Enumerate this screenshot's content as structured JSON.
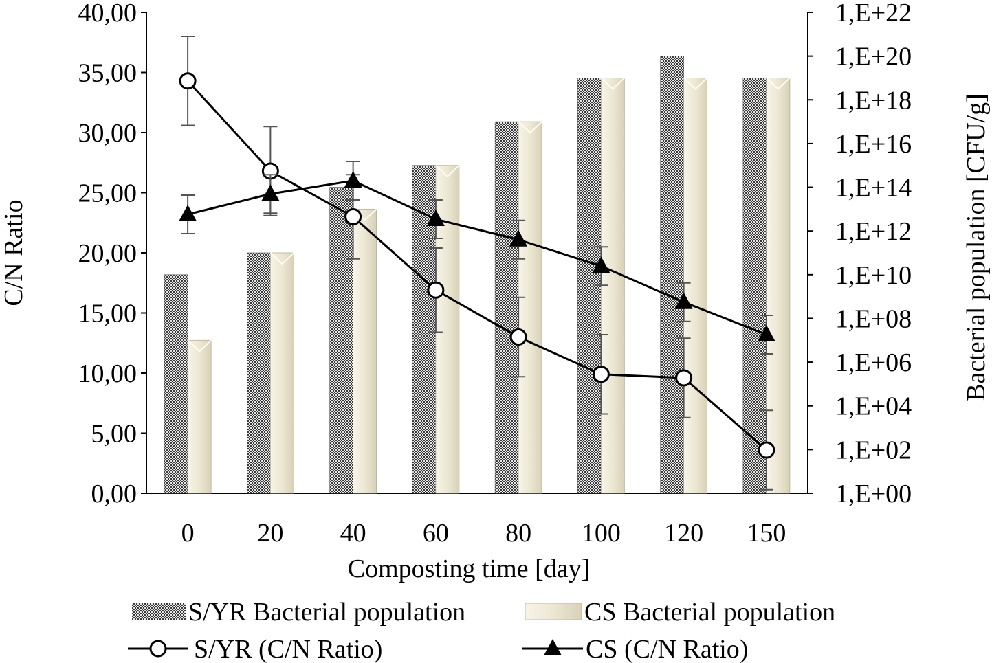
{
  "chart_data": {
    "type": "bar",
    "title": "",
    "categories": [
      "0",
      "20",
      "40",
      "60",
      "80",
      "100",
      "120",
      "150"
    ],
    "xlabel": "Composting time [day]",
    "ylabel": "C/N Ratio",
    "ylim": [
      0,
      40
    ],
    "y_ticks": [
      "0,00",
      "5,00",
      "10,00",
      "15,00",
      "20,00",
      "25,00",
      "30,00",
      "35,00",
      "40,00"
    ],
    "y2label": "Bacterial population [CFU/g]",
    "y2_scale": "log",
    "y2_exponent_range": [
      0,
      22
    ],
    "y2_ticks": [
      "1,E+00",
      "1,E+02",
      "1,E+04",
      "1,E+06",
      "1,E+08",
      "1,E+10",
      "1,E+12",
      "1,E+14",
      "1,E+16",
      "1,E+18",
      "1,E+20",
      "1,E+22"
    ],
    "series": [
      {
        "name": "S/YR Bacterial population",
        "kind": "bar",
        "axis": "right",
        "pattern": "checker",
        "values": [
          10000000000.0,
          100000000000.0,
          100000000000000.0,
          1000000000000000.0,
          1e+17,
          1e+19,
          1e+20,
          1e+19
        ]
      },
      {
        "name": "CS Bacterial population",
        "kind": "bar",
        "axis": "right",
        "color": "#eeeadb",
        "values": [
          10000000.0,
          100000000000.0,
          10000000000000.0,
          1000000000000000.0,
          1e+17,
          1e+19,
          1e+19,
          1e+19
        ]
      },
      {
        "name": "S/YR (C/N Ratio)",
        "kind": "line",
        "axis": "left",
        "marker": "circle-open",
        "values": [
          34.3,
          26.8,
          23.0,
          16.9,
          13.0,
          9.9,
          9.6,
          3.6
        ],
        "errors": [
          3.7,
          3.7,
          3.5,
          3.5,
          3.3,
          3.3,
          3.3,
          3.3
        ]
      },
      {
        "name": "CS (C/N Ratio)",
        "kind": "line",
        "axis": "left",
        "marker": "triangle-filled",
        "values": [
          23.2,
          24.9,
          26.0,
          22.8,
          21.1,
          18.9,
          15.9,
          13.2
        ],
        "errors": [
          1.6,
          1.6,
          1.6,
          1.6,
          1.6,
          1.6,
          1.6,
          1.6
        ]
      }
    ],
    "legend_position": "bottom",
    "grid": false
  }
}
